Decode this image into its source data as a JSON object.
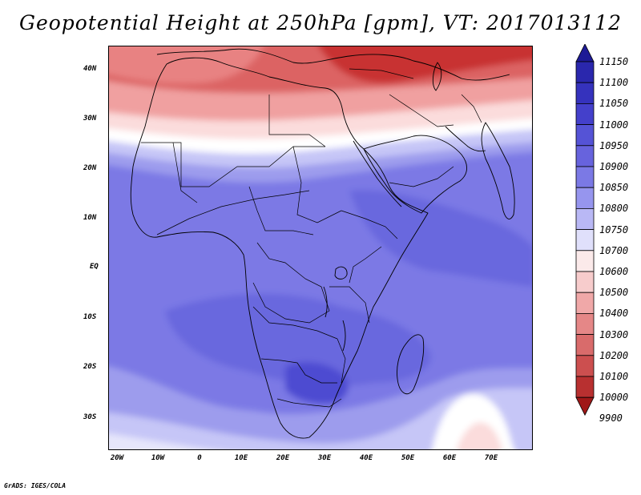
{
  "title": "Geopotential Height at 250hPa [gpm], VT: 2017013112",
  "credit": "GrADS: IGES/COLA",
  "axes": {
    "lat_labels": [
      "40N",
      "30N",
      "20N",
      "10N",
      "EQ",
      "10S",
      "20S",
      "30S"
    ],
    "lon_labels": [
      "20W",
      "10W",
      "0",
      "10E",
      "20E",
      "30E",
      "40E",
      "50E",
      "60E",
      "70E"
    ]
  },
  "legend": {
    "levels": [
      "11150",
      "11100",
      "11050",
      "11000",
      "10950",
      "10900",
      "10850",
      "10800",
      "10750",
      "10700",
      "10600",
      "10500",
      "10400",
      "10300",
      "10200",
      "10100",
      "10000",
      "9900"
    ],
    "colors": [
      "#1e1a96",
      "#2a27ad",
      "#3532bd",
      "#4440cb",
      "#5553d6",
      "#6763dd",
      "#7b79e5",
      "#9695ee",
      "#b9b8f5",
      "#e0e0fb",
      "#fbeaea",
      "#f7cccc",
      "#f0a8a8",
      "#e58787",
      "#d96b6b",
      "#cc4f4f",
      "#b83030",
      "#a01818"
    ]
  },
  "map": {
    "region": "Africa, Middle East and western Indian Ocean",
    "lat_range": [
      -37,
      45
    ],
    "lon_range": [
      -23,
      80
    ],
    "land_colors": {
      "deep_red": "#c83232",
      "red": "#dc6464",
      "light_red": "#f0a0a0",
      "pink": "#fbdcdc",
      "white": "#ffffff",
      "lavender": "#c6c6f7",
      "light_blue": "#9d9ced",
      "blue": "#7b79e5",
      "deep_blue": "#6967de",
      "darkest_blue": "#4d4bd1"
    }
  }
}
